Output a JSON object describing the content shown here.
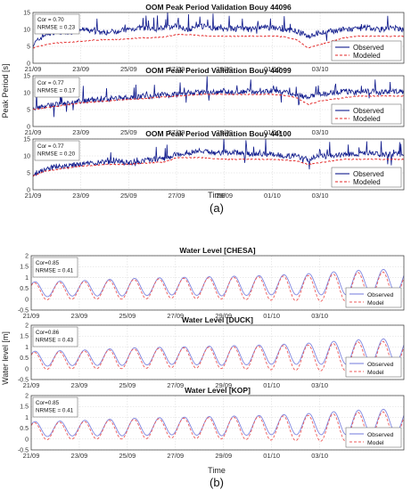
{
  "figure": {
    "label_a": "(a)",
    "label_b": "(b)",
    "panel_a": {
      "ylabel": "Peak Period [s]",
      "xlabel": "Time",
      "colors": {
        "observed": "#0f1a8c",
        "modeled": "#e32626"
      }
    },
    "panel_b": {
      "ylabel": "Water level [m]",
      "xlabel": "Time",
      "colors": {
        "observed": "#7f86e0",
        "modeled": "#ee5a5a"
      }
    }
  },
  "chart_data": [
    {
      "type": "line",
      "title": "OOM Peak Period Validation Bouy 44096",
      "stats": [
        "Cor = 0.70",
        "NRMSE = 0.23"
      ],
      "legend": [
        "Observed",
        "Modeled"
      ],
      "legend_position": "bottom-right",
      "grid": true,
      "x_ticks": [
        "21/09",
        "23/09",
        "25/09",
        "27/09",
        "29/09",
        "01/10",
        "03/10"
      ],
      "xlim_days": [
        0,
        15.5
      ],
      "ylim": [
        0,
        15
      ],
      "y_ticks": [
        0,
        5,
        10,
        15
      ],
      "series": [
        {
          "name": "Observed",
          "x_days": [
            0,
            0.5,
            1,
            1.5,
            2,
            2.5,
            3,
            3.5,
            4,
            4.5,
            5,
            5.5,
            6,
            6.5,
            7,
            7.5,
            8,
            8.5,
            9,
            9.5,
            10,
            10.5,
            11,
            11.5,
            12,
            12.5,
            13,
            13.5,
            14,
            14.5,
            15,
            15.5
          ],
          "values": [
            5.5,
            8.5,
            9.5,
            9.0,
            10.0,
            9.5,
            9.0,
            9.5,
            10.0,
            10.5,
            10.0,
            10.5,
            11.0,
            10.0,
            11.0,
            10.5,
            10.0,
            10.5,
            10.0,
            10.5,
            10.5,
            10.0,
            9.5,
            8.0,
            9.0,
            9.5,
            10.0,
            10.0,
            10.5,
            10.0,
            10.5,
            10.0
          ]
        },
        {
          "name": "Modeled",
          "x_days": [
            0,
            0.5,
            1,
            1.5,
            2,
            2.5,
            3,
            3.5,
            4,
            4.5,
            5,
            5.5,
            6,
            6.5,
            7,
            7.5,
            8,
            8.5,
            9,
            9.5,
            10,
            10.5,
            11,
            11.5,
            12,
            12.5,
            13,
            13.5,
            14,
            14.5,
            15,
            15.5
          ],
          "values": [
            4.5,
            5.5,
            6.0,
            6.2,
            6.5,
            6.8,
            7.0,
            7.0,
            7.2,
            7.5,
            7.5,
            7.8,
            8.5,
            8.5,
            8.2,
            8.0,
            8.0,
            8.0,
            8.0,
            8.0,
            8.0,
            7.8,
            7.0,
            4.5,
            5.5,
            6.5,
            7.5,
            8.0,
            8.0,
            8.0,
            8.0,
            8.0
          ]
        }
      ]
    },
    {
      "type": "line",
      "title": "OOM Peak Period Validation Bouy 44099",
      "stats": [
        "Cor = 0.77",
        "NRMSE = 0.17"
      ],
      "legend": [
        "Observed",
        "Modeled"
      ],
      "legend_position": "bottom-right",
      "grid": true,
      "x_ticks": [
        "21/09",
        "23/09",
        "25/09",
        "27/09",
        "29/09",
        "01/10",
        "03/10"
      ],
      "xlim_days": [
        0,
        15.5
      ],
      "ylim": [
        0,
        15
      ],
      "y_ticks": [
        0,
        5,
        10,
        15
      ],
      "series": [
        {
          "name": "Observed",
          "x_days": [
            0,
            0.5,
            1,
            1.5,
            2,
            2.5,
            3,
            3.5,
            4,
            4.5,
            5,
            5.5,
            6,
            6.5,
            7,
            7.5,
            8,
            8.5,
            9,
            9.5,
            10,
            10.5,
            11,
            11.5,
            12,
            12.5,
            13,
            13.5,
            14,
            14.5,
            15,
            15.5
          ],
          "values": [
            5.5,
            6.0,
            6.5,
            7.0,
            7.5,
            8.0,
            8.0,
            8.5,
            8.5,
            9.0,
            9.0,
            9.5,
            9.5,
            10.0,
            10.0,
            10.0,
            10.5,
            10.0,
            10.5,
            10.0,
            10.5,
            10.0,
            9.5,
            8.5,
            9.5,
            10.0,
            10.5,
            10.0,
            10.5,
            10.0,
            10.5,
            10.0
          ]
        },
        {
          "name": "Modeled",
          "x_days": [
            0,
            0.5,
            1,
            1.5,
            2,
            2.5,
            3,
            3.5,
            4,
            4.5,
            5,
            5.5,
            6,
            6.5,
            7,
            7.5,
            8,
            8.5,
            9,
            9.5,
            10,
            10.5,
            11,
            11.5,
            12,
            12.5,
            13,
            13.5,
            14,
            14.5,
            15,
            15.5
          ],
          "values": [
            5.0,
            5.5,
            6.0,
            6.5,
            7.0,
            7.2,
            7.5,
            7.8,
            8.0,
            8.2,
            8.5,
            8.8,
            9.0,
            9.2,
            9.5,
            9.5,
            9.5,
            9.5,
            9.5,
            9.5,
            9.5,
            9.2,
            8.5,
            6.5,
            7.5,
            8.0,
            8.5,
            9.0,
            9.0,
            9.0,
            9.0,
            9.0
          ]
        }
      ]
    },
    {
      "type": "line",
      "title": "OOM Peak Period Validation Bouy 44100",
      "stats": [
        "Cor = 0.77",
        "NRMSE = 0.20"
      ],
      "legend": [
        "Observed",
        "Modeled"
      ],
      "legend_position": "bottom-right",
      "grid": true,
      "x_ticks": [
        "21/09",
        "23/09",
        "25/09",
        "27/09",
        "29/09",
        "01/10",
        "03/10"
      ],
      "xlim_days": [
        0,
        15.5
      ],
      "ylim": [
        0,
        15
      ],
      "y_ticks": [
        0,
        5,
        10,
        15
      ],
      "series": [
        {
          "name": "Observed",
          "x_days": [
            0,
            0.5,
            1,
            1.5,
            2,
            2.5,
            3,
            3.5,
            4,
            4.5,
            5,
            5.5,
            6,
            6.5,
            7,
            7.5,
            8,
            8.5,
            9,
            9.5,
            10,
            10.5,
            11,
            11.5,
            12,
            12.5,
            13,
            13.5,
            14,
            14.5,
            15,
            15.5
          ],
          "values": [
            4.5,
            6.0,
            7.0,
            7.0,
            7.5,
            8.0,
            8.0,
            8.5,
            8.0,
            8.5,
            9.0,
            9.0,
            10.5,
            11.0,
            11.5,
            11.0,
            11.0,
            11.0,
            10.5,
            10.5,
            10.5,
            10.0,
            10.0,
            9.0,
            10.0,
            10.0,
            10.5,
            10.5,
            11.0,
            10.5,
            10.5,
            10.5
          ]
        },
        {
          "name": "Modeled",
          "x_days": [
            0,
            0.5,
            1,
            1.5,
            2,
            2.5,
            3,
            3.5,
            4,
            4.5,
            5,
            5.5,
            6,
            6.5,
            7,
            7.5,
            8,
            8.5,
            9,
            9.5,
            10,
            10.5,
            11,
            11.5,
            12,
            12.5,
            13,
            13.5,
            14,
            14.5,
            15,
            15.5
          ],
          "values": [
            4.0,
            5.5,
            6.0,
            6.5,
            7.0,
            7.2,
            7.5,
            7.5,
            7.5,
            7.8,
            8.0,
            8.2,
            9.5,
            9.5,
            9.5,
            9.2,
            9.0,
            9.0,
            9.0,
            9.0,
            9.0,
            8.8,
            8.5,
            7.5,
            8.0,
            8.5,
            9.0,
            9.0,
            9.0,
            9.0,
            9.0,
            9.0
          ]
        }
      ]
    },
    {
      "type": "line",
      "title": "Water Level [CHESA]",
      "stats": [
        "Cor=0.85",
        "NRMSE = 0.41"
      ],
      "legend": [
        "Observed",
        "Model"
      ],
      "legend_position": "bottom-right",
      "grid": true,
      "x_ticks": [
        "21/09",
        "23/09",
        "25/09",
        "27/09",
        "29/09",
        "01/10",
        "03/10"
      ],
      "xlim_days": [
        0,
        15.5
      ],
      "ylim": [
        -0.5,
        2
      ],
      "y_ticks": [
        -0.5,
        0,
        0.5,
        1,
        1.5,
        2
      ],
      "tidal_period_days": 1.035,
      "series": [
        {
          "name": "Observed",
          "x_days": [
            0,
            2,
            4,
            6,
            8,
            10,
            12,
            13,
            14,
            15.5
          ],
          "mean": [
            0.45,
            0.5,
            0.55,
            0.6,
            0.6,
            0.65,
            0.7,
            0.75,
            0.8,
            0.85
          ],
          "amplitude": [
            0.35,
            0.35,
            0.4,
            0.4,
            0.45,
            0.45,
            0.5,
            0.55,
            0.55,
            0.55
          ]
        },
        {
          "name": "Model",
          "x_days": [
            0,
            2,
            4,
            6,
            8,
            10,
            12,
            13,
            14,
            15.5
          ],
          "mean": [
            0.35,
            0.4,
            0.45,
            0.5,
            0.5,
            0.5,
            0.5,
            0.55,
            0.6,
            0.65
          ],
          "amplitude": [
            0.4,
            0.4,
            0.45,
            0.45,
            0.5,
            0.55,
            0.6,
            0.65,
            0.65,
            0.6
          ]
        }
      ]
    },
    {
      "type": "line",
      "title": "Water Level [DUCK]",
      "stats": [
        "Cor=0.86",
        "NRMSE = 0.43"
      ],
      "legend": [
        "Observed",
        "Model"
      ],
      "legend_position": "bottom-right",
      "grid": true,
      "x_ticks": [
        "21/09",
        "23/09",
        "25/09",
        "27/09",
        "29/09",
        "01/10",
        "03/10"
      ],
      "xlim_days": [
        0,
        15.5
      ],
      "ylim": [
        -0.5,
        2
      ],
      "y_ticks": [
        -0.5,
        0,
        0.5,
        1,
        1.5,
        2
      ],
      "tidal_period_days": 1.035,
      "series": [
        {
          "name": "Observed",
          "x_days": [
            0,
            2,
            4,
            6,
            8,
            10,
            12,
            13,
            14,
            15.5
          ],
          "mean": [
            0.45,
            0.5,
            0.55,
            0.6,
            0.6,
            0.65,
            0.7,
            0.75,
            0.8,
            0.85
          ],
          "amplitude": [
            0.35,
            0.35,
            0.4,
            0.4,
            0.45,
            0.45,
            0.5,
            0.55,
            0.55,
            0.55
          ]
        },
        {
          "name": "Model",
          "x_days": [
            0,
            2,
            4,
            6,
            8,
            10,
            12,
            13,
            14,
            15.5
          ],
          "mean": [
            0.35,
            0.4,
            0.45,
            0.5,
            0.5,
            0.5,
            0.5,
            0.55,
            0.6,
            0.65
          ],
          "amplitude": [
            0.4,
            0.4,
            0.45,
            0.45,
            0.5,
            0.55,
            0.6,
            0.65,
            0.65,
            0.6
          ]
        }
      ]
    },
    {
      "type": "line",
      "title": "Water Level [KOP]",
      "stats": [
        "Cor=0.85",
        "NRMSE = 0.41"
      ],
      "legend": [
        "Observed",
        "Model"
      ],
      "legend_position": "bottom-right",
      "grid": true,
      "x_ticks": [
        "21/09",
        "23/09",
        "25/09",
        "27/09",
        "29/09",
        "01/10",
        "03/10"
      ],
      "xlim_days": [
        0,
        15.5
      ],
      "ylim": [
        -0.5,
        2
      ],
      "y_ticks": [
        -0.5,
        0,
        0.5,
        1,
        1.5,
        2
      ],
      "tidal_period_days": 1.035,
      "series": [
        {
          "name": "Observed",
          "x_days": [
            0,
            2,
            4,
            6,
            8,
            10,
            12,
            13,
            14,
            15.5
          ],
          "mean": [
            0.45,
            0.5,
            0.55,
            0.6,
            0.6,
            0.65,
            0.7,
            0.75,
            0.8,
            0.85
          ],
          "amplitude": [
            0.35,
            0.35,
            0.4,
            0.4,
            0.45,
            0.45,
            0.5,
            0.55,
            0.55,
            0.55
          ]
        },
        {
          "name": "Model",
          "x_days": [
            0,
            2,
            4,
            6,
            8,
            10,
            12,
            13,
            14,
            15.5
          ],
          "mean": [
            0.35,
            0.4,
            0.45,
            0.5,
            0.5,
            0.5,
            0.5,
            0.55,
            0.6,
            0.65
          ],
          "amplitude": [
            0.4,
            0.4,
            0.45,
            0.45,
            0.5,
            0.55,
            0.6,
            0.65,
            0.65,
            0.6
          ]
        }
      ]
    }
  ]
}
